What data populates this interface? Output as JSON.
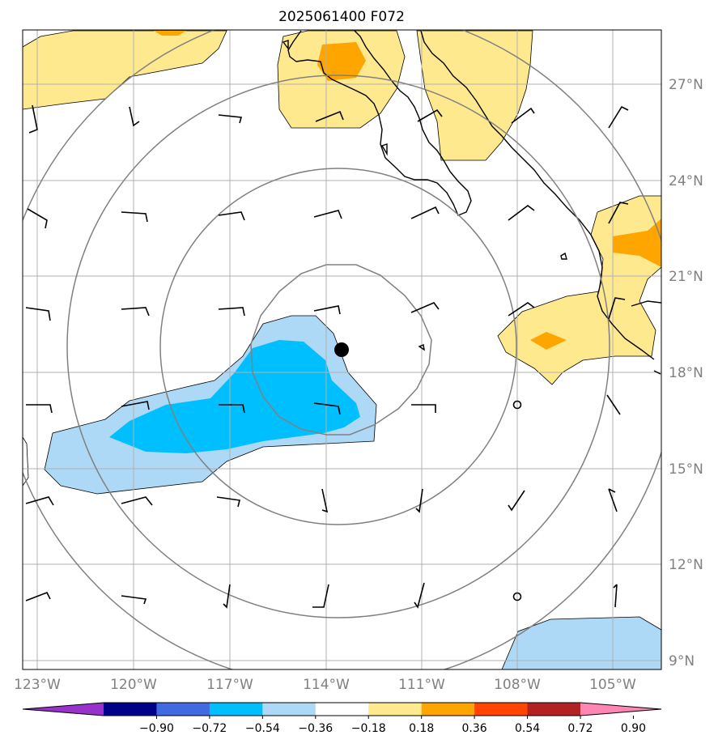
{
  "title": "2025061400 F072",
  "map": {
    "lon_labels": [
      "123°W",
      "120°W",
      "117°W",
      "114°W",
      "111°W",
      "108°W",
      "105°W"
    ],
    "lat_labels": [
      "27°N",
      "24°N",
      "21°N",
      "18°N",
      "15°N",
      "12°N",
      "9°N"
    ],
    "grid": true,
    "storm_center": {
      "lon": -113.5,
      "lat": 18.7
    },
    "range_rings": true,
    "colors": {
      "gridline": "#b0b0b0",
      "range_ring": "#808080",
      "coastline": "#000000",
      "storm_marker": "#000000"
    }
  },
  "colorbar": {
    "tick_labels": [
      "−0.90",
      "−0.72",
      "−0.54",
      "−0.36",
      "−0.18",
      "0.18",
      "0.36",
      "0.54",
      "0.72",
      "0.90"
    ],
    "colors": [
      "#9932cc",
      "#00008b",
      "#4169e1",
      "#00bfff",
      "#add8f6",
      "#ffffff",
      "#ffe98f",
      "#ffa500",
      "#ff4500",
      "#b22222",
      "#ff86b4"
    ]
  }
}
